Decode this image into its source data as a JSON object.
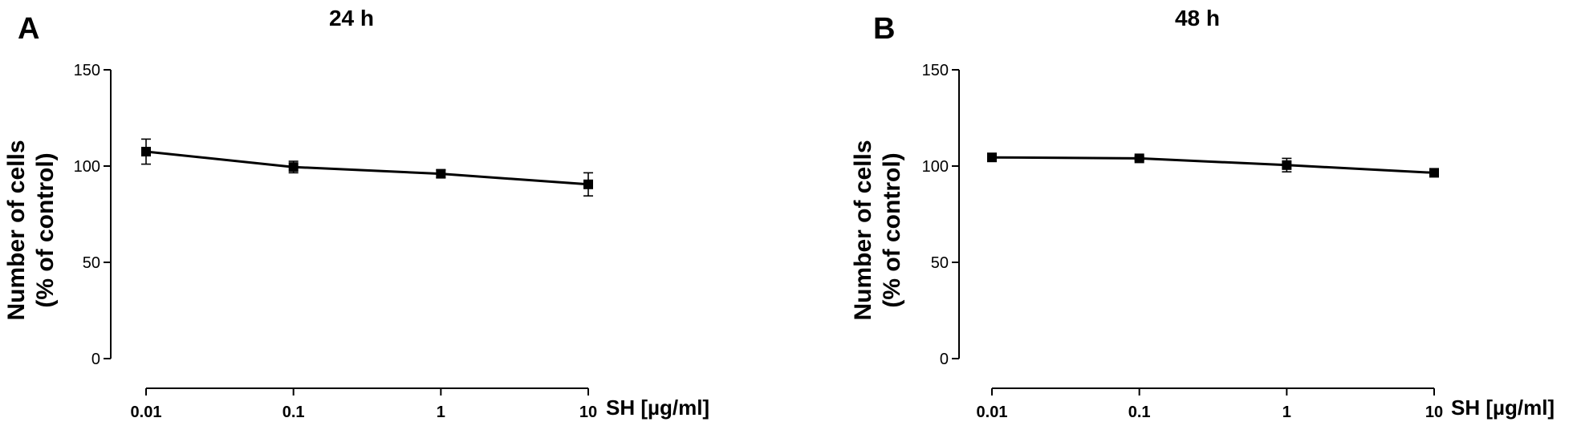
{
  "chart_data": [
    {
      "type": "line",
      "panel": "A",
      "title": "24 h",
      "ylabel_lines": [
        "Number of cells",
        "(% of control)"
      ],
      "xlabel": "SH [µg/ml]",
      "x_scale": "log",
      "x": [
        0.01,
        0.1,
        1,
        10
      ],
      "x_tick_labels": [
        "0.01",
        "0.1",
        "1",
        "10"
      ],
      "ylim": [
        0,
        150
      ],
      "y_ticks": [
        0,
        50,
        100,
        150
      ],
      "y_tick_labels": [
        "0",
        "50",
        "100",
        "150"
      ],
      "grid": false,
      "series": [
        {
          "values": [
            107.5,
            99.5,
            96,
            90.5
          ],
          "errors": [
            6.5,
            3,
            2,
            6
          ]
        }
      ]
    },
    {
      "type": "line",
      "panel": "B",
      "title": "48 h",
      "ylabel_lines": [
        "Number of cells",
        "(% of control)"
      ],
      "xlabel": "SH [µg/ml]",
      "x_scale": "log",
      "x": [
        0.01,
        0.1,
        1,
        10
      ],
      "x_tick_labels": [
        "0.01",
        "0.1",
        "1",
        "10"
      ],
      "ylim": [
        0,
        150
      ],
      "y_ticks": [
        0,
        50,
        100,
        150
      ],
      "y_tick_labels": [
        "0",
        "50",
        "100",
        "150"
      ],
      "grid": false,
      "series": [
        {
          "values": [
            104.5,
            104,
            100.5,
            96.5
          ],
          "errors": [
            1,
            1,
            3.5,
            1
          ]
        }
      ]
    }
  ]
}
